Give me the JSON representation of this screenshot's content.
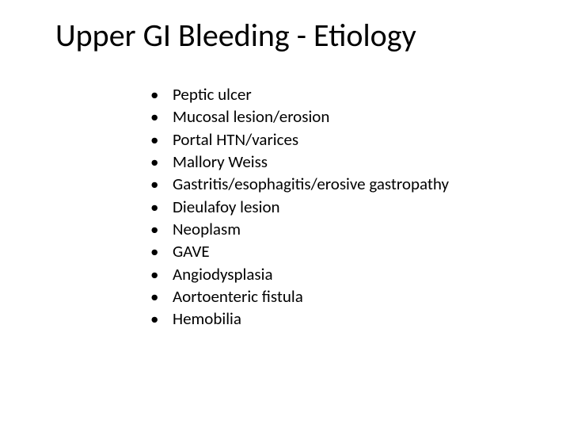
{
  "slide": {
    "title": "Upper GI Bleeding - Etiology",
    "title_fontsize": 40,
    "title_color": "#000000",
    "body_fontsize": 21,
    "body_color": "#000000",
    "background_color": "#ffffff",
    "bullets": [
      "Peptic ulcer",
      "Mucosal lesion/erosion",
      "Portal HTN/varices",
      "Mallory Weiss",
      "Gastritis/esophagitis/erosive gastropathy",
      "Dieulafoy lesion",
      "Neoplasm",
      "GAVE",
      "Angiodysplasia",
      "Aortoenteric fistula",
      "Hemobilia"
    ]
  }
}
